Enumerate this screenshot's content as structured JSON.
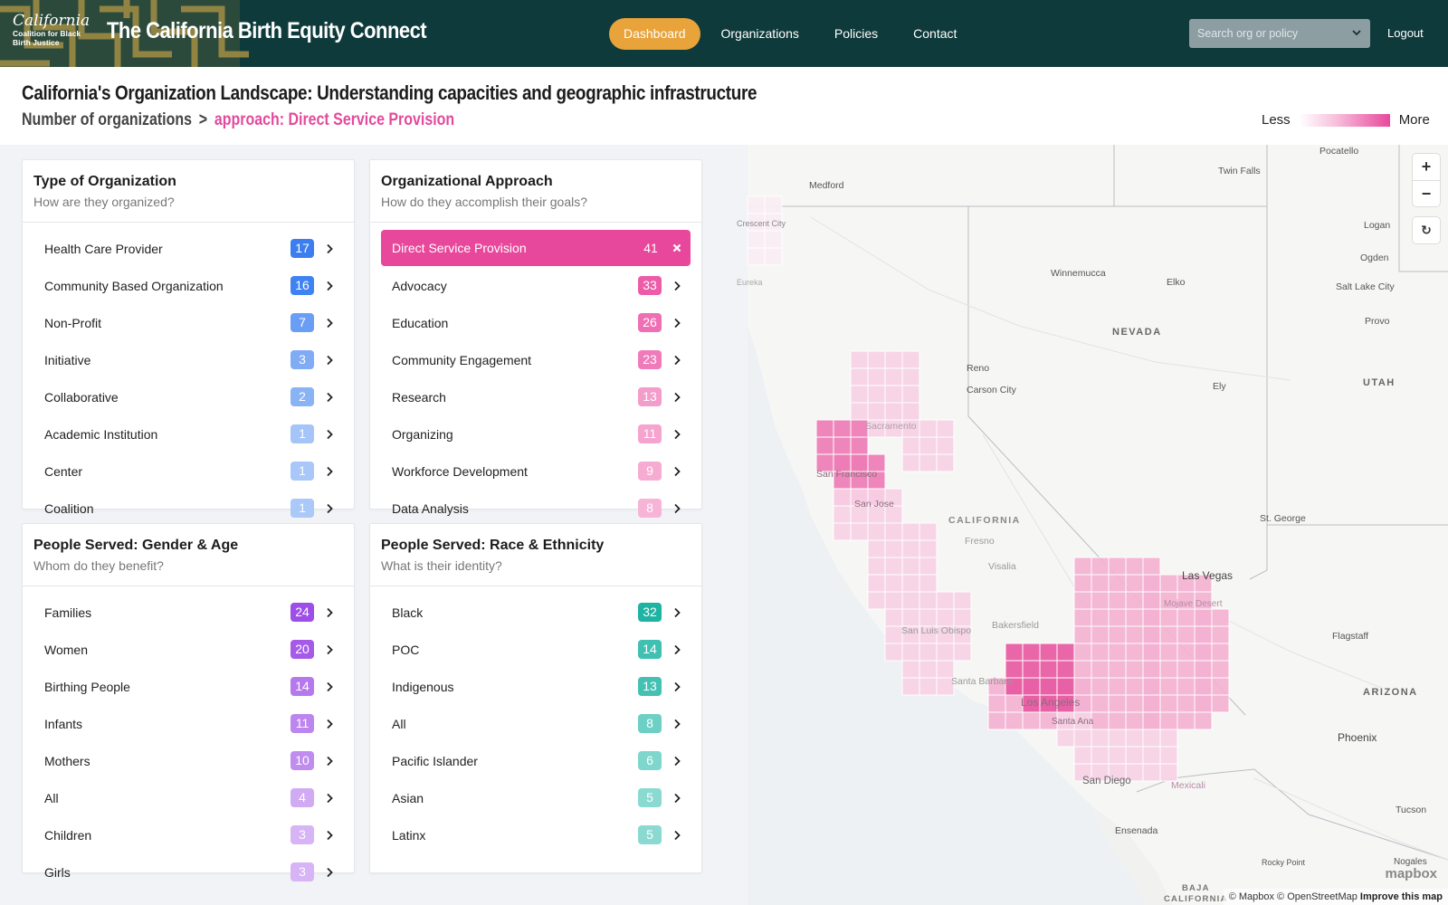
{
  "header": {
    "logo_line1": "California",
    "logo_line2": "Coalition for Black",
    "logo_line3": "Birth Justice",
    "app_title": "The California Birth Equity Connect",
    "nav": [
      {
        "label": "Dashboard",
        "active": true
      },
      {
        "label": "Organizations",
        "active": false
      },
      {
        "label": "Policies",
        "active": false
      },
      {
        "label": "Contact",
        "active": false
      }
    ],
    "search_placeholder": "Search org or policy",
    "logout_label": "Logout",
    "colors": {
      "bar": "#0f3a3b",
      "active_nav": "#e8a33a"
    }
  },
  "page": {
    "title": "California's Organization Landscape: Understanding capacities and geographic infrastructure",
    "breadcrumb_root": "Number of organizations",
    "breadcrumb_sep": ">",
    "breadcrumb_active": "approach: Direct Service Provision",
    "legend_less": "Less",
    "legend_more": "More"
  },
  "cards": {
    "type": {
      "title": "Type of Organization",
      "subtitle": "How are they organized?",
      "rows": [
        {
          "label": "Health Care Provider",
          "count": "17",
          "color": "#3c7ef0"
        },
        {
          "label": "Community Based Organization",
          "count": "16",
          "color": "#3f82f1"
        },
        {
          "label": "Non-Profit",
          "count": "7",
          "color": "#6a9ef4"
        },
        {
          "label": "Initiative",
          "count": "3",
          "color": "#80acf5"
        },
        {
          "label": "Collaborative",
          "count": "2",
          "color": "#8ab3f6"
        },
        {
          "label": "Academic Institution",
          "count": "1",
          "color": "#a5c4f8"
        },
        {
          "label": "Center",
          "count": "1",
          "color": "#a9c7f8"
        },
        {
          "label": "Coalition",
          "count": "1",
          "color": "#aac8f8"
        }
      ]
    },
    "approach": {
      "title": "Organizational Approach",
      "subtitle": "How do they accomplish their goals?",
      "selected": {
        "label": "Direct Service Provision",
        "count": "41"
      },
      "rows": [
        {
          "label": "Advocacy",
          "count": "33",
          "color": "#ec5ca9"
        },
        {
          "label": "Education",
          "count": "26",
          "color": "#ee6fb3"
        },
        {
          "label": "Community Engagement",
          "count": "23",
          "color": "#f07bba"
        },
        {
          "label": "Research",
          "count": "13",
          "color": "#f49cca"
        },
        {
          "label": "Organizing",
          "count": "11",
          "color": "#f5a4ce"
        },
        {
          "label": "Workforce Development",
          "count": "9",
          "color": "#f6acd2"
        },
        {
          "label": "Data Analysis",
          "count": "8",
          "color": "#f7b4d6"
        }
      ]
    },
    "gender": {
      "title": "People Served: Gender & Age",
      "subtitle": "Whom do they benefit?",
      "rows": [
        {
          "label": "Families",
          "count": "24",
          "color": "#9d4ee6"
        },
        {
          "label": "Women",
          "count": "20",
          "color": "#a65be8"
        },
        {
          "label": "Birthing People",
          "count": "14",
          "color": "#b679ed"
        },
        {
          "label": "Infants",
          "count": "11",
          "color": "#bd86ef"
        },
        {
          "label": "Mothers",
          "count": "10",
          "color": "#c08cef"
        },
        {
          "label": "All",
          "count": "4",
          "color": "#d1aaf4"
        },
        {
          "label": "Children",
          "count": "3",
          "color": "#d6b4f5"
        },
        {
          "label": "Girls",
          "count": "3",
          "color": "#d6b4f5"
        }
      ]
    },
    "race": {
      "title": "People Served: Race & Ethnicity",
      "subtitle": "What is their identity?",
      "rows": [
        {
          "label": "Black",
          "count": "32",
          "color": "#1eb3a2"
        },
        {
          "label": "POC",
          "count": "14",
          "color": "#40c0b1"
        },
        {
          "label": "Indigenous",
          "count": "13",
          "color": "#44c1b3"
        },
        {
          "label": "All",
          "count": "8",
          "color": "#6dd0c5"
        },
        {
          "label": "Pacific Islander",
          "count": "6",
          "color": "#7fd6cc"
        },
        {
          "label": "Asian",
          "count": "5",
          "color": "#8adad1"
        },
        {
          "label": "Latinx",
          "count": "5",
          "color": "#8adad1"
        }
      ]
    }
  },
  "map": {
    "labels": {
      "medford": "Medford",
      "crescent": "Crescent City",
      "eureka": "Eureka",
      "twin_falls": "Twin Falls",
      "pocatello": "Pocatello",
      "logan": "Logan",
      "ogden": "Ogden",
      "slc": "Salt Lake City",
      "provo": "Provo",
      "winnemucca": "Winnemucca",
      "elko": "Elko",
      "nevada": "NEVADA",
      "utah": "UTAH",
      "reno": "Reno",
      "carson": "Carson City",
      "ely": "Ely",
      "sacramento": "Sacramento",
      "sf": "San Francisco",
      "sj": "San Jose",
      "california": "CALIFORNIA",
      "fresno": "Fresno",
      "visalia": "Visalia",
      "stgeorge": "St. George",
      "lasvegas": "Las Vegas",
      "mojave": "Mojave Desert",
      "bakersfield": "Bakersfield",
      "slo": "San Luis Obispo",
      "flagstaff": "Flagstaff",
      "santa_barbara": "Santa Barbara",
      "la": "Los Angeles",
      "santa_ana": "Santa Ana",
      "arizona": "ARIZONA",
      "phoenix": "Phoenix",
      "sandiego": "San Diego",
      "mexicali": "Mexicali",
      "tucson": "Tucson",
      "ensenada": "Ensenada",
      "rocky": "Rocky Point",
      "nogales": "Nogales",
      "baja": "BAJA",
      "baja2": "CALIFORNIA"
    },
    "attribution": "© Mapbox © OpenStreetMap",
    "improve": "Improve this map",
    "logo": "mapbox",
    "zoom_in": "+",
    "zoom_out": "−",
    "reset": "↻"
  }
}
